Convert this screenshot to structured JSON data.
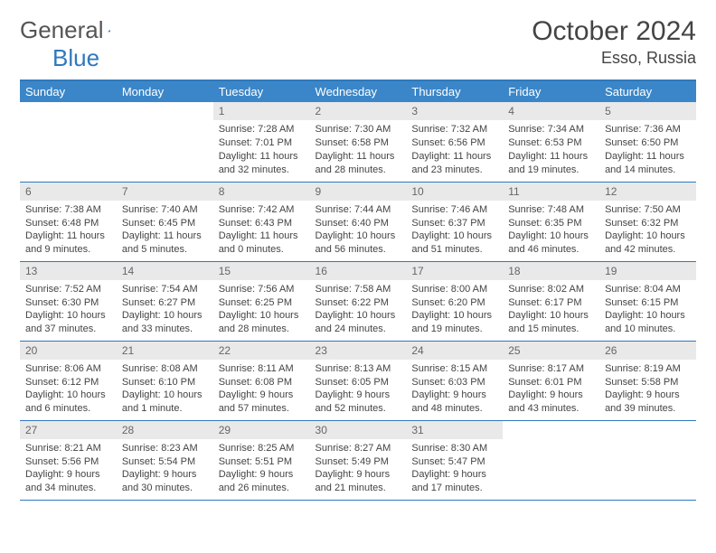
{
  "logo": {
    "text_a": "General",
    "text_b": "Blue",
    "color_a": "#555555",
    "color_b": "#2f79bd"
  },
  "header": {
    "month": "October 2024",
    "location": "Esso, Russia"
  },
  "colors": {
    "header_bg": "#3b86c8",
    "header_text": "#ffffff",
    "border": "#2f79bd",
    "daynum_bg": "#e9e9e9",
    "daynum_text": "#666666",
    "body_text": "#444444"
  },
  "weekdays": [
    "Sunday",
    "Monday",
    "Tuesday",
    "Wednesday",
    "Thursday",
    "Friday",
    "Saturday"
  ],
  "leading_blanks": 2,
  "days": [
    {
      "n": "1",
      "sr": "Sunrise: 7:28 AM",
      "ss": "Sunset: 7:01 PM",
      "dl": "Daylight: 11 hours and 32 minutes."
    },
    {
      "n": "2",
      "sr": "Sunrise: 7:30 AM",
      "ss": "Sunset: 6:58 PM",
      "dl": "Daylight: 11 hours and 28 minutes."
    },
    {
      "n": "3",
      "sr": "Sunrise: 7:32 AM",
      "ss": "Sunset: 6:56 PM",
      "dl": "Daylight: 11 hours and 23 minutes."
    },
    {
      "n": "4",
      "sr": "Sunrise: 7:34 AM",
      "ss": "Sunset: 6:53 PM",
      "dl": "Daylight: 11 hours and 19 minutes."
    },
    {
      "n": "5",
      "sr": "Sunrise: 7:36 AM",
      "ss": "Sunset: 6:50 PM",
      "dl": "Daylight: 11 hours and 14 minutes."
    },
    {
      "n": "6",
      "sr": "Sunrise: 7:38 AM",
      "ss": "Sunset: 6:48 PM",
      "dl": "Daylight: 11 hours and 9 minutes."
    },
    {
      "n": "7",
      "sr": "Sunrise: 7:40 AM",
      "ss": "Sunset: 6:45 PM",
      "dl": "Daylight: 11 hours and 5 minutes."
    },
    {
      "n": "8",
      "sr": "Sunrise: 7:42 AM",
      "ss": "Sunset: 6:43 PM",
      "dl": "Daylight: 11 hours and 0 minutes."
    },
    {
      "n": "9",
      "sr": "Sunrise: 7:44 AM",
      "ss": "Sunset: 6:40 PM",
      "dl": "Daylight: 10 hours and 56 minutes."
    },
    {
      "n": "10",
      "sr": "Sunrise: 7:46 AM",
      "ss": "Sunset: 6:37 PM",
      "dl": "Daylight: 10 hours and 51 minutes."
    },
    {
      "n": "11",
      "sr": "Sunrise: 7:48 AM",
      "ss": "Sunset: 6:35 PM",
      "dl": "Daylight: 10 hours and 46 minutes."
    },
    {
      "n": "12",
      "sr": "Sunrise: 7:50 AM",
      "ss": "Sunset: 6:32 PM",
      "dl": "Daylight: 10 hours and 42 minutes."
    },
    {
      "n": "13",
      "sr": "Sunrise: 7:52 AM",
      "ss": "Sunset: 6:30 PM",
      "dl": "Daylight: 10 hours and 37 minutes."
    },
    {
      "n": "14",
      "sr": "Sunrise: 7:54 AM",
      "ss": "Sunset: 6:27 PM",
      "dl": "Daylight: 10 hours and 33 minutes."
    },
    {
      "n": "15",
      "sr": "Sunrise: 7:56 AM",
      "ss": "Sunset: 6:25 PM",
      "dl": "Daylight: 10 hours and 28 minutes."
    },
    {
      "n": "16",
      "sr": "Sunrise: 7:58 AM",
      "ss": "Sunset: 6:22 PM",
      "dl": "Daylight: 10 hours and 24 minutes."
    },
    {
      "n": "17",
      "sr": "Sunrise: 8:00 AM",
      "ss": "Sunset: 6:20 PM",
      "dl": "Daylight: 10 hours and 19 minutes."
    },
    {
      "n": "18",
      "sr": "Sunrise: 8:02 AM",
      "ss": "Sunset: 6:17 PM",
      "dl": "Daylight: 10 hours and 15 minutes."
    },
    {
      "n": "19",
      "sr": "Sunrise: 8:04 AM",
      "ss": "Sunset: 6:15 PM",
      "dl": "Daylight: 10 hours and 10 minutes."
    },
    {
      "n": "20",
      "sr": "Sunrise: 8:06 AM",
      "ss": "Sunset: 6:12 PM",
      "dl": "Daylight: 10 hours and 6 minutes."
    },
    {
      "n": "21",
      "sr": "Sunrise: 8:08 AM",
      "ss": "Sunset: 6:10 PM",
      "dl": "Daylight: 10 hours and 1 minute."
    },
    {
      "n": "22",
      "sr": "Sunrise: 8:11 AM",
      "ss": "Sunset: 6:08 PM",
      "dl": "Daylight: 9 hours and 57 minutes."
    },
    {
      "n": "23",
      "sr": "Sunrise: 8:13 AM",
      "ss": "Sunset: 6:05 PM",
      "dl": "Daylight: 9 hours and 52 minutes."
    },
    {
      "n": "24",
      "sr": "Sunrise: 8:15 AM",
      "ss": "Sunset: 6:03 PM",
      "dl": "Daylight: 9 hours and 48 minutes."
    },
    {
      "n": "25",
      "sr": "Sunrise: 8:17 AM",
      "ss": "Sunset: 6:01 PM",
      "dl": "Daylight: 9 hours and 43 minutes."
    },
    {
      "n": "26",
      "sr": "Sunrise: 8:19 AM",
      "ss": "Sunset: 5:58 PM",
      "dl": "Daylight: 9 hours and 39 minutes."
    },
    {
      "n": "27",
      "sr": "Sunrise: 8:21 AM",
      "ss": "Sunset: 5:56 PM",
      "dl": "Daylight: 9 hours and 34 minutes."
    },
    {
      "n": "28",
      "sr": "Sunrise: 8:23 AM",
      "ss": "Sunset: 5:54 PM",
      "dl": "Daylight: 9 hours and 30 minutes."
    },
    {
      "n": "29",
      "sr": "Sunrise: 8:25 AM",
      "ss": "Sunset: 5:51 PM",
      "dl": "Daylight: 9 hours and 26 minutes."
    },
    {
      "n": "30",
      "sr": "Sunrise: 8:27 AM",
      "ss": "Sunset: 5:49 PM",
      "dl": "Daylight: 9 hours and 21 minutes."
    },
    {
      "n": "31",
      "sr": "Sunrise: 8:30 AM",
      "ss": "Sunset: 5:47 PM",
      "dl": "Daylight: 9 hours and 17 minutes."
    }
  ]
}
